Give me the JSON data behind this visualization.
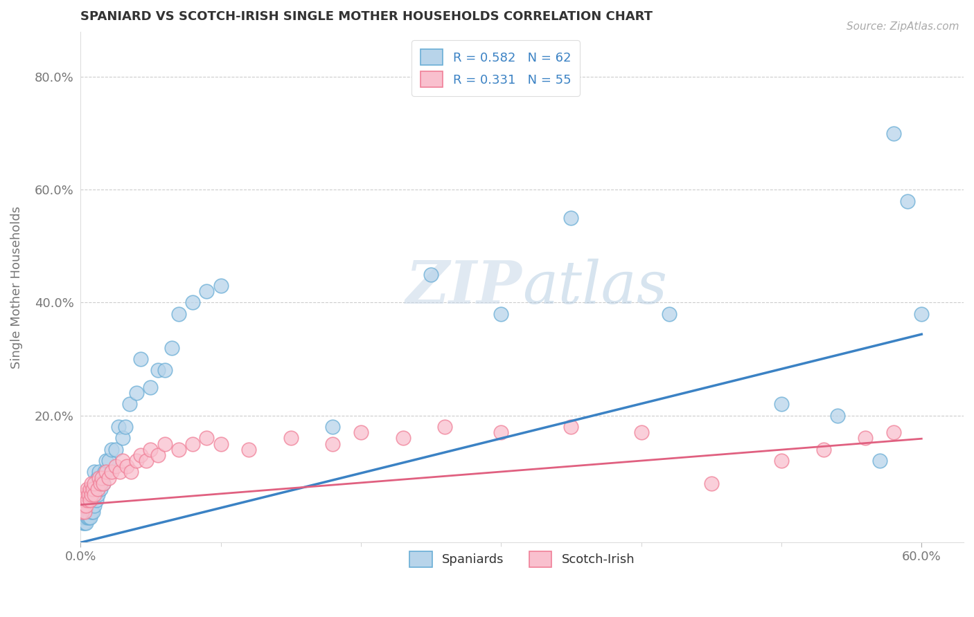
{
  "title": "SPANIARD VS SCOTCH-IRISH SINGLE MOTHER HOUSEHOLDS CORRELATION CHART",
  "source": "Source: ZipAtlas.com",
  "ylabel": "Single Mother Households",
  "xlim": [
    0.0,
    0.63
  ],
  "ylim": [
    -0.025,
    0.88
  ],
  "legend_blue_R": "R = 0.582",
  "legend_blue_N": "N = 62",
  "legend_pink_R": "R = 0.331",
  "legend_pink_N": "N = 55",
  "blue_fill": "#b8d4ea",
  "blue_edge": "#6aaed6",
  "pink_fill": "#f9c0ce",
  "pink_edge": "#f08098",
  "blue_line": "#3b82c4",
  "pink_line": "#e06080",
  "grid_color": "#cccccc",
  "watermark_color": "#dce8f2",
  "title_color": "#333333",
  "tick_color": "#777777",
  "ylabel_color": "#777777",
  "source_color": "#aaaaaa",
  "blue_slope": 0.615,
  "blue_intercept": -0.025,
  "pink_slope": 0.195,
  "pink_intercept": 0.042,
  "spaniards_x": [
    0.001,
    0.001,
    0.002,
    0.002,
    0.003,
    0.003,
    0.003,
    0.004,
    0.004,
    0.004,
    0.005,
    0.005,
    0.005,
    0.006,
    0.006,
    0.007,
    0.007,
    0.008,
    0.008,
    0.008,
    0.009,
    0.009,
    0.01,
    0.01,
    0.01,
    0.011,
    0.012,
    0.012,
    0.013,
    0.014,
    0.015,
    0.016,
    0.017,
    0.018,
    0.02,
    0.022,
    0.025,
    0.027,
    0.03,
    0.032,
    0.035,
    0.04,
    0.043,
    0.05,
    0.055,
    0.06,
    0.065,
    0.07,
    0.08,
    0.09,
    0.1,
    0.18,
    0.25,
    0.3,
    0.35,
    0.42,
    0.5,
    0.54,
    0.57,
    0.58,
    0.59,
    0.6
  ],
  "spaniards_y": [
    0.02,
    0.04,
    0.01,
    0.03,
    0.01,
    0.02,
    0.04,
    0.01,
    0.03,
    0.05,
    0.02,
    0.04,
    0.06,
    0.02,
    0.05,
    0.02,
    0.06,
    0.03,
    0.05,
    0.07,
    0.03,
    0.06,
    0.04,
    0.07,
    0.1,
    0.05,
    0.06,
    0.09,
    0.1,
    0.07,
    0.09,
    0.08,
    0.1,
    0.12,
    0.12,
    0.14,
    0.14,
    0.18,
    0.16,
    0.18,
    0.22,
    0.24,
    0.3,
    0.25,
    0.28,
    0.28,
    0.32,
    0.38,
    0.4,
    0.42,
    0.43,
    0.18,
    0.45,
    0.38,
    0.55,
    0.38,
    0.22,
    0.2,
    0.12,
    0.7,
    0.58,
    0.38
  ],
  "scotchirish_x": [
    0.001,
    0.001,
    0.002,
    0.002,
    0.003,
    0.003,
    0.004,
    0.004,
    0.005,
    0.005,
    0.006,
    0.007,
    0.007,
    0.008,
    0.008,
    0.009,
    0.01,
    0.01,
    0.012,
    0.013,
    0.014,
    0.015,
    0.016,
    0.018,
    0.02,
    0.022,
    0.025,
    0.028,
    0.03,
    0.033,
    0.036,
    0.04,
    0.043,
    0.047,
    0.05,
    0.055,
    0.06,
    0.07,
    0.08,
    0.09,
    0.1,
    0.12,
    0.15,
    0.18,
    0.2,
    0.23,
    0.26,
    0.3,
    0.35,
    0.4,
    0.45,
    0.5,
    0.53,
    0.56,
    0.58
  ],
  "scotchirish_y": [
    0.03,
    0.05,
    0.04,
    0.06,
    0.03,
    0.05,
    0.04,
    0.06,
    0.05,
    0.07,
    0.06,
    0.05,
    0.07,
    0.06,
    0.08,
    0.07,
    0.06,
    0.08,
    0.07,
    0.09,
    0.08,
    0.09,
    0.08,
    0.1,
    0.09,
    0.1,
    0.11,
    0.1,
    0.12,
    0.11,
    0.1,
    0.12,
    0.13,
    0.12,
    0.14,
    0.13,
    0.15,
    0.14,
    0.15,
    0.16,
    0.15,
    0.14,
    0.16,
    0.15,
    0.17,
    0.16,
    0.18,
    0.17,
    0.18,
    0.17,
    0.08,
    0.12,
    0.14,
    0.16,
    0.17
  ]
}
